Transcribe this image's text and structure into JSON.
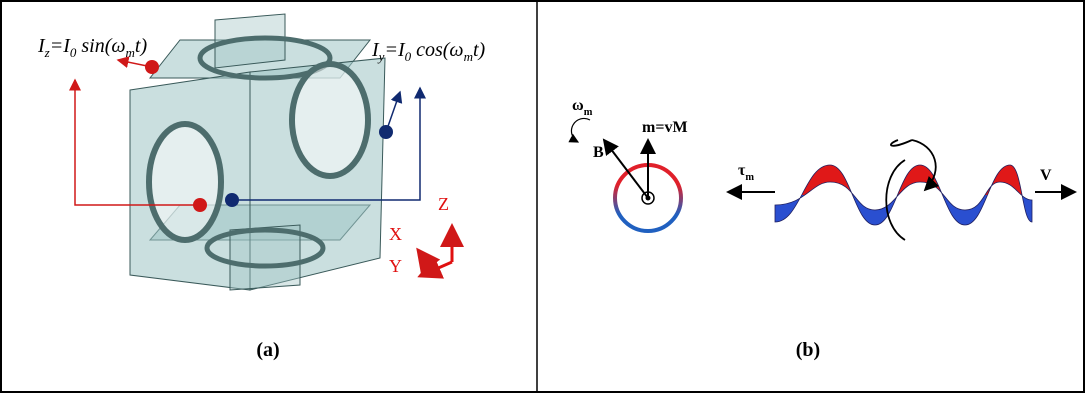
{
  "panel_a": {
    "formula_z": [
      "I",
      "z",
      "=I",
      "0",
      " sin(ω",
      "m",
      "t)"
    ],
    "formula_y": [
      "I",
      "y",
      "=I",
      "0",
      " cos(ω",
      "m",
      "t)"
    ],
    "axes": {
      "z": "Z",
      "x": "X",
      "y": "Y"
    },
    "label": "(a)"
  },
  "panel_b": {
    "omega": [
      "ω",
      "m"
    ],
    "b_field": "B",
    "moment": "m=vM",
    "torque": [
      "τ",
      "m"
    ],
    "velocity": "V",
    "label": "(b)"
  }
}
